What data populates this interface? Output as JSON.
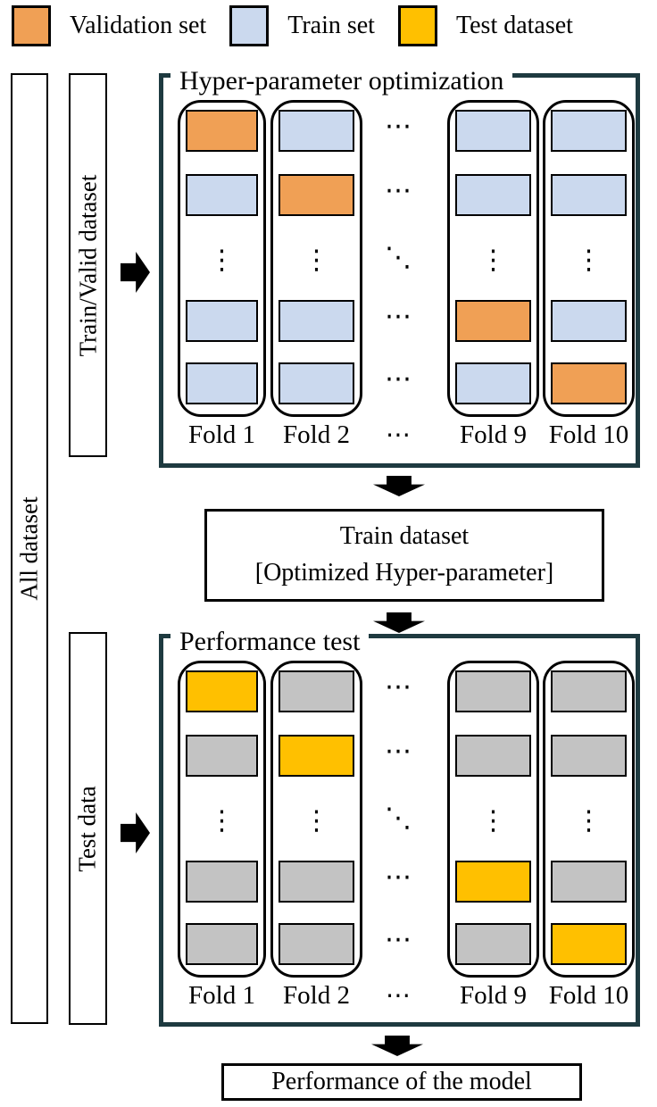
{
  "legend": {
    "items": [
      {
        "label": "Validation set",
        "color": "#F0A055"
      },
      {
        "label": "Train set",
        "color": "#CBD9EE"
      },
      {
        "label": "Test dataset",
        "color": "#FFC000"
      }
    ]
  },
  "side_labels": {
    "all_dataset": "All dataset",
    "train_valid": "Train/Valid dataset",
    "test_data": "Test data"
  },
  "glyphs": {
    "vdots": "⋮",
    "hdots": "⋯",
    "ddots": "⋱"
  },
  "sections": [
    {
      "id": "hyperparam",
      "title": "Hyper-parameter optimization",
      "colors": {
        "base": "#CBD9EE",
        "highlight": "#F0A055"
      },
      "columns": [
        {
          "type": "fold",
          "label": "Fold 1",
          "cells": [
            "highlight",
            "base",
            "dots",
            "base",
            "base"
          ]
        },
        {
          "type": "fold",
          "label": "Fold 2",
          "cells": [
            "base",
            "highlight",
            "dots",
            "base",
            "base"
          ]
        },
        {
          "type": "gap",
          "label": "⋯"
        },
        {
          "type": "fold",
          "label": "Fold 9",
          "cells": [
            "base",
            "base",
            "dots",
            "highlight",
            "base"
          ]
        },
        {
          "type": "fold",
          "label": "Fold 10",
          "cells": [
            "base",
            "base",
            "dots",
            "base",
            "highlight"
          ]
        }
      ]
    },
    {
      "id": "performance",
      "title": "Performance test",
      "colors": {
        "base": "#C3C3C3",
        "highlight": "#FFC000"
      },
      "columns": [
        {
          "type": "fold",
          "label": "Fold 1",
          "cells": [
            "highlight",
            "base",
            "dots",
            "base",
            "base"
          ]
        },
        {
          "type": "fold",
          "label": "Fold 2",
          "cells": [
            "base",
            "highlight",
            "dots",
            "base",
            "base"
          ]
        },
        {
          "type": "gap",
          "label": "⋯"
        },
        {
          "type": "fold",
          "label": "Fold 9",
          "cells": [
            "base",
            "base",
            "dots",
            "highlight",
            "base"
          ]
        },
        {
          "type": "fold",
          "label": "Fold 10",
          "cells": [
            "base",
            "base",
            "dots",
            "base",
            "highlight"
          ]
        }
      ]
    }
  ],
  "middle_box": {
    "line1": "Train dataset",
    "line2": "[Optimized Hyper-parameter]"
  },
  "result_box": {
    "label": "Performance of the model"
  }
}
